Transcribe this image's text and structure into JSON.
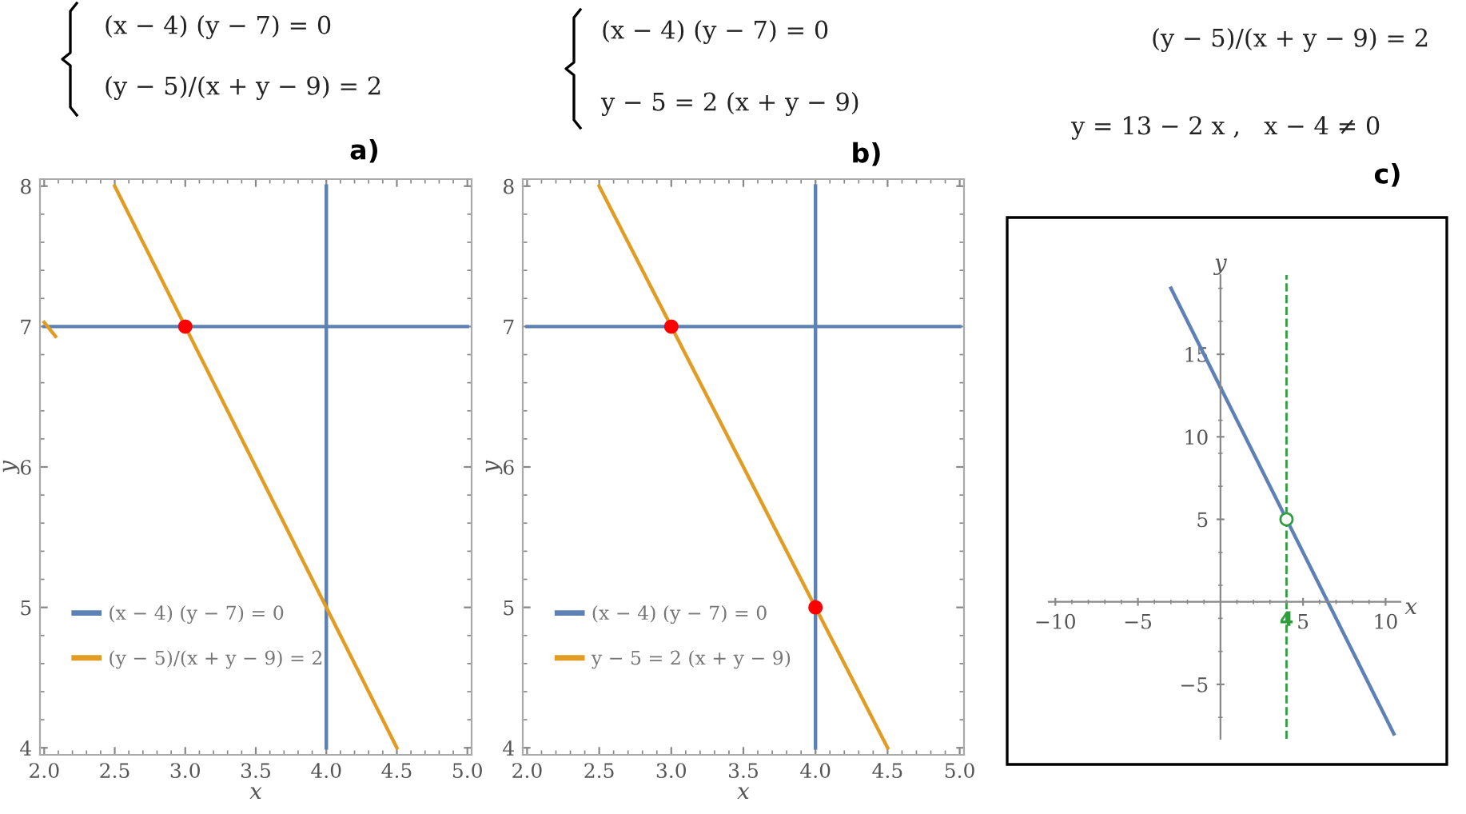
{
  "chart_data": [
    {
      "type": "line",
      "title": "a)",
      "xlabel": "x",
      "ylabel": "y",
      "annotations": [
        "(x − 4) (y − 7) = 0",
        "(y − 5)/(x + y − 9) = 2"
      ],
      "xlim": [
        1.97,
        5.03
      ],
      "ylim": [
        3.95,
        8.05
      ],
      "xticks": [
        {
          "value": 2,
          "label": "2.0"
        },
        2.5,
        {
          "value": 3,
          "label": "3.0"
        },
        3.5,
        {
          "value": 4,
          "label": "4.0"
        },
        4.5,
        {
          "value": 5,
          "label": "5.0"
        }
      ],
      "yticks": [
        4,
        5,
        6,
        7,
        8
      ],
      "grid": false,
      "legend": "bottom left",
      "line_style": "solid",
      "series": [
        {
          "name": "(x − 4) (y − 7) = 0",
          "color": "#5e81b5",
          "x": [
            2,
            5
          ],
          "values": [
            7,
            7
          ]
        },
        {
          "color": "#5e81b5",
          "x": [
            4,
            4
          ],
          "values": [
            4,
            8
          ]
        },
        {
          "name": "(y − 5)/(x + y − 9) = 2",
          "color": "#e19c24",
          "x": [
            2.5,
            4.5
          ],
          "values": [
            8,
            4
          ]
        },
        {
          "color": "#e19c24",
          "x": [
            2.0,
            2.08
          ],
          "values": [
            7.03,
            6.93
          ]
        },
        {
          "type": "scatter",
          "marker": "circle",
          "color": "#ff0000",
          "x": [
            3
          ],
          "values": [
            7
          ]
        }
      ]
    },
    {
      "type": "line",
      "title": "b)",
      "xlabel": "x",
      "ylabel": "y",
      "annotations": [
        "(x − 4) (y − 7) = 0",
        "y − 5 = 2 (x + y − 9)"
      ],
      "xlim": [
        1.97,
        5.03
      ],
      "ylim": [
        3.95,
        8.05
      ],
      "xticks": [
        {
          "value": 2,
          "label": "2.0"
        },
        2.5,
        {
          "value": 3,
          "label": "3.0"
        },
        3.5,
        {
          "value": 4,
          "label": "4.0"
        },
        4.5,
        {
          "value": 5,
          "label": "5.0"
        }
      ],
      "yticks": [
        4,
        5,
        6,
        7,
        8
      ],
      "grid": false,
      "legend": "bottom left",
      "line_style": "solid",
      "series": [
        {
          "name": "(x − 4) (y − 7) = 0",
          "color": "#5e81b5",
          "x": [
            2,
            5
          ],
          "values": [
            7,
            7
          ]
        },
        {
          "color": "#5e81b5",
          "x": [
            4,
            4
          ],
          "values": [
            4,
            8
          ]
        },
        {
          "name": "y − 5 = 2 (x + y − 9)",
          "color": "#e19c24",
          "x": [
            2.5,
            4.5
          ],
          "values": [
            8,
            4
          ]
        },
        {
          "type": "scatter",
          "marker": "circle",
          "color": "#ff0000",
          "x": [
            3,
            4
          ],
          "values": [
            7,
            5
          ]
        }
      ]
    },
    {
      "type": "line",
      "title": "c)",
      "xlabel": "x",
      "ylabel": "y",
      "annotations": [
        "(y − 5)/(x + y − 9) = 2",
        "y = 13 − 2 x ,   x − 4 ≠ 0"
      ],
      "xlim": [
        -10.4,
        10.9
      ],
      "ylim": [
        -8.3,
        19.8
      ],
      "xticks": [
        {
          "value": -10,
          "label": "−10"
        },
        {
          "value": -5,
          "label": "−5"
        },
        5,
        10
      ],
      "yticks": [
        {
          "value": -5,
          "label": "−5"
        },
        5,
        10,
        15
      ],
      "grid": false,
      "line_style": "solid",
      "ref_lines": [
        {
          "axis": "x",
          "value": 4,
          "label": "4",
          "color": "#2e9e3e",
          "line_style": "dashed"
        }
      ],
      "series": [
        {
          "color": "#5e81b5",
          "x": [
            -3,
            10.5
          ],
          "values": [
            19,
            -8
          ]
        },
        {
          "type": "scatter",
          "marker": "circle",
          "color": "#2e9e3e",
          "x": [
            4
          ],
          "values": [
            5
          ]
        }
      ]
    }
  ]
}
